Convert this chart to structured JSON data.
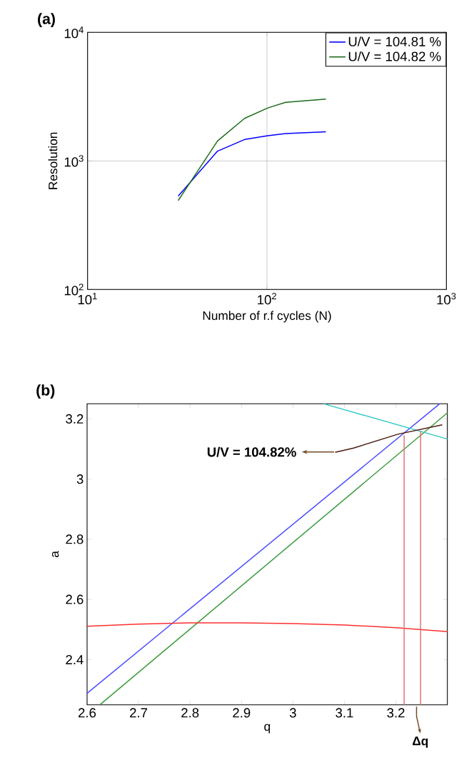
{
  "chart_data": [
    {
      "type": "line",
      "title": "(a)",
      "xlabel": "Number of r.f cycles (N)",
      "ylabel": "Resolution",
      "log": "xy",
      "grid": true,
      "legend": "top right",
      "xlim": [
        10,
        1000
      ],
      "ylim": [
        100,
        10000
      ],
      "xticks": [
        {
          "value": 10,
          "label": "10$^{1}$"
        },
        {
          "value": 100,
          "label": "10$^{2}$"
        },
        {
          "value": 1000,
          "label": "10$^{3}$"
        }
      ],
      "yticks": [
        {
          "value": 100,
          "label": "10$^{2}$"
        },
        {
          "value": 1000,
          "label": "10$^{3}$"
        },
        {
          "value": 10000,
          "label": "10$^{4}$"
        }
      ],
      "x": [
        32,
        53,
        75,
        101,
        127,
        213
      ],
      "series": [
        {
          "name": "U/V = 104.81 %",
          "color": "#0000ff",
          "values": [
            533,
            1192,
            1468,
            1573,
            1633,
            1686
          ]
        },
        {
          "name": "U/V = 104.82 %",
          "color": "#1a6b1a",
          "values": [
            492,
            1429,
            2143,
            2582,
            2858,
            3029
          ]
        }
      ]
    },
    {
      "type": "line",
      "title": "(b)",
      "xlabel": "q",
      "ylabel": "a",
      "xlim": [
        2.6,
        3.3
      ],
      "ylim": [
        2.25,
        3.25
      ],
      "xticks": [
        2.6,
        2.7,
        2.8,
        2.9,
        3,
        3.1,
        3.2
      ],
      "yticks": [
        2.4,
        2.6,
        2.8,
        3,
        3.2
      ],
      "annotations": [
        {
          "text": "U/V = 104.82%",
          "x": 3.08,
          "y": 3.09
        },
        "Δq"
      ],
      "series": [
        {
          "color": "#4a4aff",
          "x": [
            2.6,
            3.285
          ],
          "values": [
            2.288,
            3.25
          ]
        },
        {
          "color": "#3a9a3a",
          "x": [
            2.625,
            3.3
          ],
          "values": [
            2.25,
            3.22
          ]
        },
        {
          "color": "#ff3030",
          "x": [
            2.6,
            2.7,
            2.8,
            2.9,
            3.0,
            3.1,
            3.2,
            3.3
          ],
          "values": [
            2.511,
            2.518,
            2.522,
            2.522,
            2.52,
            2.515,
            2.506,
            2.493
          ]
        },
        {
          "color": "#30c8c8",
          "x": [
            3.06,
            3.3
          ],
          "values": [
            3.25,
            3.133
          ]
        },
        {
          "color": "#4a1a10",
          "x": [
            3.082,
            3.118,
            3.204,
            3.29
          ],
          "values": [
            3.089,
            3.103,
            3.149,
            3.18
          ]
        },
        {
          "color": "#e07070",
          "x": [
            3.216,
            3.216
          ],
          "values": [
            2.25,
            3.145
          ]
        },
        {
          "color": "#e07070",
          "x": [
            3.248,
            3.248
          ],
          "values": [
            2.25,
            3.16
          ]
        }
      ]
    }
  ]
}
